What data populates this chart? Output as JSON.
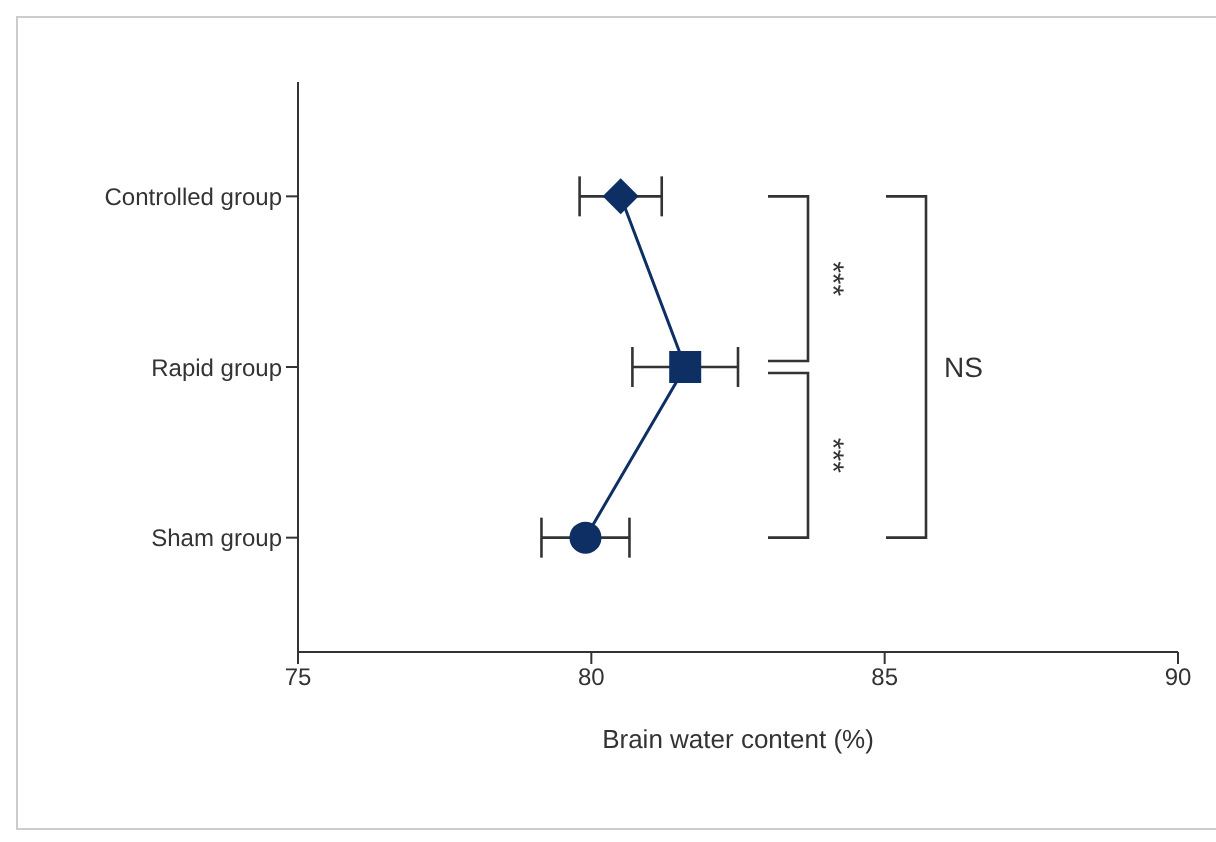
{
  "chart_data": {
    "type": "line",
    "orientation": "horizontal",
    "xlabel": "Brain water content (%)",
    "categories": [
      "Controlled group",
      "Rapid group",
      "Sham group"
    ],
    "series": [
      {
        "color": "#0d2f63",
        "values": [
          80.5,
          81.6,
          79.9
        ],
        "errors": [
          0.7,
          0.9,
          0.75
        ]
      }
    ],
    "marker": [
      "diamond",
      "square",
      "circle"
    ],
    "xlim": [
      75,
      90
    ],
    "xticks": [
      75,
      80,
      85,
      90
    ],
    "annotations": [
      "***",
      "***",
      "NS"
    ]
  }
}
